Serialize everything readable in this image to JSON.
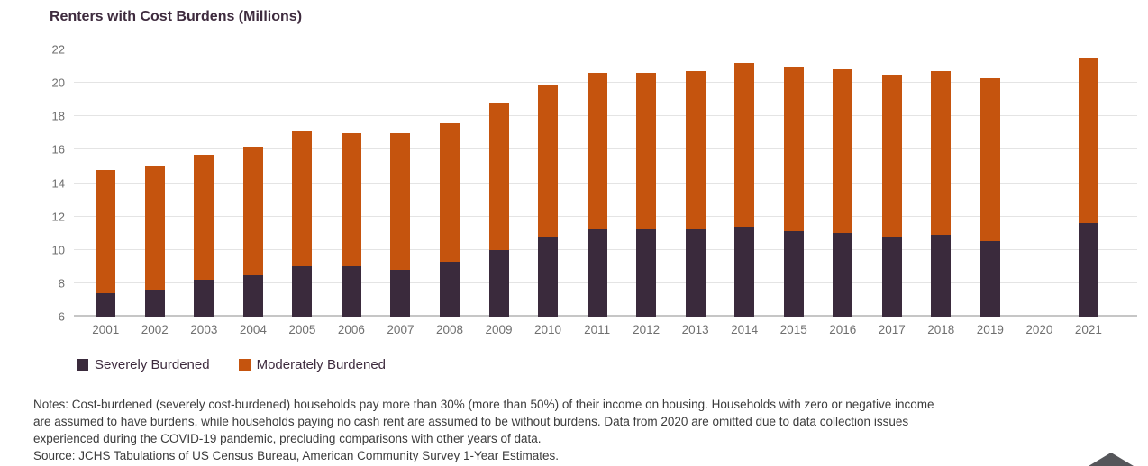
{
  "title": "Renters with Cost Burdens (Millions)",
  "colors": {
    "severely_burdened": "#3A2A3C",
    "moderately_burdened": "#C5540E",
    "title_text": "#3E2B3E",
    "axis_text": "#6F6F6F",
    "notes_text": "#3B3B3B",
    "gridline": "#E4E4E4",
    "baseline": "#C6C6C6",
    "roof_shape": "#55565A"
  },
  "chart_data": {
    "type": "bar",
    "stacked": true,
    "title": "Renters with Cost Burdens (Millions)",
    "categories": [
      "2001",
      "2002",
      "2003",
      "2004",
      "2005",
      "2006",
      "2007",
      "2008",
      "2009",
      "2010",
      "2011",
      "2012",
      "2013",
      "2014",
      "2015",
      "2016",
      "2017",
      "2018",
      "2019",
      "2020",
      "2021"
    ],
    "series": [
      {
        "name": "Severely Burdened",
        "color": "#3A2A3C",
        "values": [
          7.4,
          7.6,
          8.2,
          8.5,
          9.0,
          9.0,
          8.8,
          9.3,
          10.0,
          10.8,
          11.3,
          11.2,
          11.2,
          11.4,
          11.1,
          11.0,
          10.8,
          10.9,
          10.5,
          null,
          11.6
        ]
      },
      {
        "name": "Moderately Burdened",
        "color": "#C5540E",
        "values": [
          7.4,
          7.4,
          7.5,
          7.7,
          8.1,
          8.0,
          8.2,
          8.3,
          8.8,
          9.1,
          9.3,
          9.4,
          9.5,
          9.8,
          9.9,
          9.8,
          9.7,
          9.8,
          9.8,
          null,
          9.9
        ]
      }
    ],
    "totals": [
      14.8,
      15.0,
      15.7,
      16.2,
      17.1,
      17.0,
      17.0,
      17.6,
      18.8,
      19.9,
      20.6,
      20.6,
      20.7,
      21.2,
      21.0,
      20.8,
      20.5,
      20.7,
      20.3,
      null,
      21.5
    ],
    "ylim": [
      6,
      22
    ],
    "yticks": [
      6,
      8,
      10,
      12,
      14,
      16,
      18,
      20,
      22
    ],
    "grid": true,
    "legend_position": "bottom-left",
    "omitted_category": "2020"
  },
  "legend": {
    "items": [
      {
        "label": "Severely Burdened",
        "color": "#3A2A3C"
      },
      {
        "label": "Moderately Burdened",
        "color": "#C5540E"
      }
    ]
  },
  "notes": {
    "line1": "Notes: Cost-burdened (severely cost-burdened) households pay more than 30% (more than 50%) of their income on housing. Households with zero or negative income",
    "line2": "are assumed to have burdens, while households paying no cash rent are assumed to be without burdens. Data from 2020 are omitted due to data collection issues",
    "line3": "experienced during the COVID-19 pandemic, precluding comparisons with other years of data.",
    "source": "Source: JCHS Tabulations of US Census Bureau, American Community Survey 1-Year Estimates."
  }
}
